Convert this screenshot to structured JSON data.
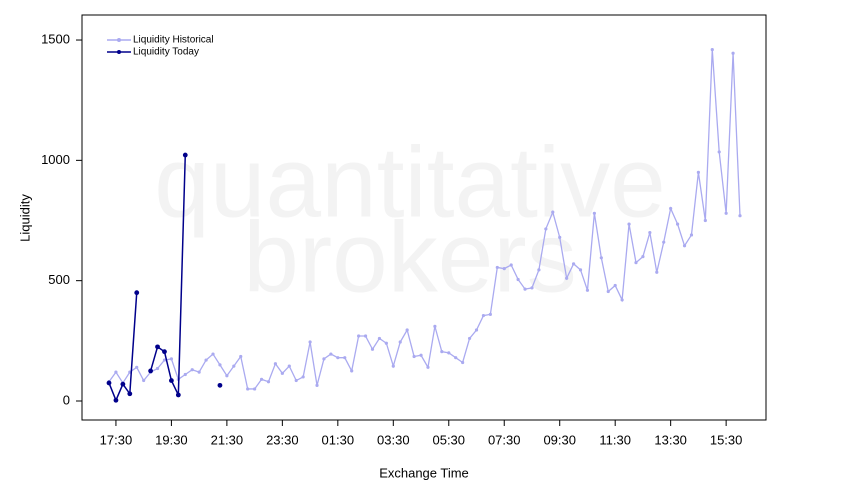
{
  "chart_data": {
    "type": "line",
    "xlabel": "Exchange Time",
    "ylabel": "Liquidity",
    "watermark": [
      "quantitative",
      "brokers"
    ],
    "categories": [
      null,
      "17:30",
      null,
      null,
      null,
      null,
      null,
      null,
      null,
      "19:30",
      null,
      null,
      null,
      null,
      null,
      null,
      null,
      "21:30",
      null,
      null,
      null,
      null,
      null,
      null,
      null,
      "23:30",
      null,
      null,
      null,
      null,
      null,
      null,
      null,
      "01:30",
      null,
      null,
      null,
      null,
      null,
      null,
      null,
      "03:30",
      null,
      null,
      null,
      null,
      null,
      null,
      null,
      "05:30",
      null,
      null,
      null,
      null,
      null,
      null,
      null,
      "07:30",
      null,
      null,
      null,
      null,
      null,
      null,
      null,
      "09:30",
      null,
      null,
      null,
      null,
      null,
      null,
      null,
      "11:30",
      null,
      null,
      null,
      null,
      null,
      null,
      null,
      "13:30",
      null,
      null,
      null,
      null,
      null,
      null,
      null,
      "15:30",
      null,
      null
    ],
    "series": [
      {
        "name": "Liquidity Historical",
        "color": "#aaaaf0",
        "values": [
          80,
          120,
          75,
          120,
          140,
          85,
          120,
          135,
          170,
          175,
          90,
          110,
          130,
          120,
          170,
          195,
          150,
          105,
          145,
          185,
          50,
          50,
          90,
          80,
          155,
          115,
          145,
          85,
          100,
          245,
          65,
          175,
          195,
          180,
          180,
          125,
          270,
          270,
          215,
          260,
          240,
          145,
          245,
          295,
          185,
          190,
          140,
          310,
          205,
          200,
          180,
          160,
          260,
          295,
          355,
          360,
          555,
          550,
          565,
          505,
          465,
          470,
          545,
          715,
          785,
          680,
          510,
          570,
          545,
          460,
          780,
          595,
          455,
          480,
          420,
          735,
          575,
          600,
          700,
          535,
          660,
          800,
          735,
          645,
          690,
          950,
          750,
          1460,
          1035,
          780,
          1445,
          770
        ]
      },
      {
        "name": "Liquidity Today",
        "color": "#00008b",
        "values": [
          75,
          3,
          70,
          30,
          450,
          null,
          125,
          225,
          205,
          85,
          25,
          1022,
          null,
          null,
          null,
          null,
          65,
          null,
          null,
          null,
          null,
          null,
          null,
          null,
          null,
          null,
          null,
          null,
          null,
          null,
          null,
          null,
          null,
          null,
          null,
          null,
          null,
          null,
          null,
          null,
          null,
          null,
          null,
          null,
          null,
          null,
          null,
          null,
          null,
          null,
          null,
          null,
          null,
          null,
          null,
          null,
          null,
          null,
          null,
          null,
          null,
          null,
          null,
          null,
          null,
          null,
          null,
          null,
          null,
          null,
          null,
          null,
          null,
          null,
          null,
          null,
          null,
          null,
          null,
          null,
          null,
          null,
          null,
          null,
          null,
          null,
          null,
          null,
          null,
          null,
          null,
          null
        ]
      }
    ],
    "ylim": [
      -79,
      1604
    ],
    "yticks": [
      0,
      500,
      1000,
      1500
    ],
    "legend": "top-left"
  }
}
